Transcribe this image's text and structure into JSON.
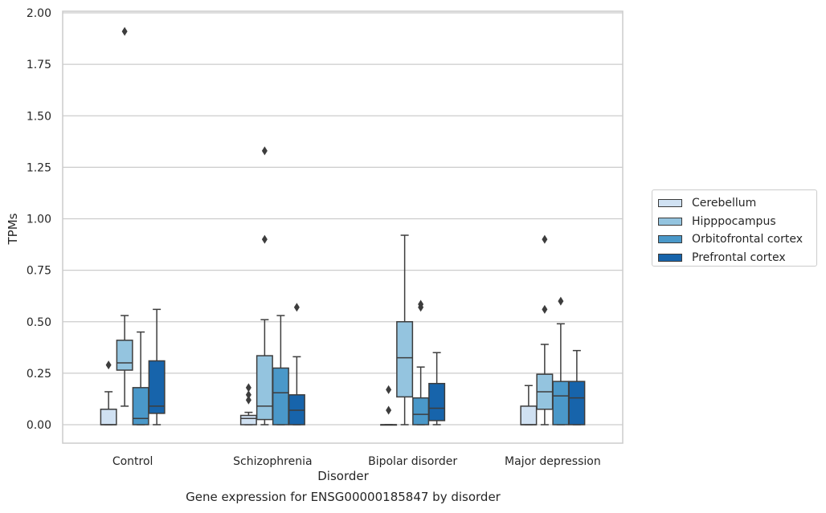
{
  "chart_data": {
    "type": "box",
    "xlabel": "Disorder",
    "ylabel": "TPMs",
    "caption": "Gene expression for ENSG00000185847 by disorder",
    "categories": [
      "Control",
      "Schizophrenia",
      "Bipolar disorder",
      "Major depression"
    ],
    "ylim": [
      -0.09,
      2.01
    ],
    "yticks": [
      0.0,
      0.25,
      0.5,
      0.75,
      1.0,
      1.25,
      1.5,
      1.75,
      2.0
    ],
    "ytick_labels": [
      "0.00",
      "0.25",
      "0.50",
      "0.75",
      "1.00",
      "1.25",
      "1.50",
      "1.75",
      "2.00"
    ],
    "grid": true,
    "legend_position": "right",
    "series": [
      {
        "name": "Cerebellum",
        "color": "#d0e1f2",
        "boxes": [
          {
            "whislo": 0.0,
            "q1": 0.0,
            "med": 0.0,
            "q3": 0.075,
            "whishi": 0.16,
            "fliers": [
              0.29
            ]
          },
          {
            "whislo": 0.0,
            "q1": 0.0,
            "med": 0.03,
            "q3": 0.045,
            "whishi": 0.06,
            "fliers": [
              0.12,
              0.145,
              0.18
            ]
          },
          {
            "whislo": 0.0,
            "q1": 0.0,
            "med": 0.0,
            "q3": 0.0,
            "whishi": 0.0,
            "fliers": [
              0.07,
              0.17
            ]
          },
          {
            "whislo": 0.0,
            "q1": 0.0,
            "med": 0.0,
            "q3": 0.09,
            "whishi": 0.19,
            "fliers": []
          }
        ]
      },
      {
        "name": "Hipppocampus",
        "color": "#94c4df",
        "boxes": [
          {
            "whislo": 0.09,
            "q1": 0.265,
            "med": 0.3,
            "q3": 0.41,
            "whishi": 0.53,
            "fliers": [
              1.91
            ]
          },
          {
            "whislo": 0.0,
            "q1": 0.025,
            "med": 0.09,
            "q3": 0.335,
            "whishi": 0.51,
            "fliers": [
              0.9,
              1.33
            ]
          },
          {
            "whislo": 0.0,
            "q1": 0.135,
            "med": 0.325,
            "q3": 0.5,
            "whishi": 0.92,
            "fliers": []
          },
          {
            "whislo": 0.0,
            "q1": 0.075,
            "med": 0.16,
            "q3": 0.245,
            "whishi": 0.39,
            "fliers": [
              0.56,
              0.9
            ]
          }
        ]
      },
      {
        "name": "Orbitofrontal cortex",
        "color": "#4a98c9",
        "boxes": [
          {
            "whislo": 0.0,
            "q1": 0.0,
            "med": 0.03,
            "q3": 0.18,
            "whishi": 0.45,
            "fliers": []
          },
          {
            "whislo": 0.0,
            "q1": 0.0,
            "med": 0.155,
            "q3": 0.275,
            "whishi": 0.53,
            "fliers": []
          },
          {
            "whislo": 0.0,
            "q1": 0.0,
            "med": 0.05,
            "q3": 0.13,
            "whishi": 0.28,
            "fliers": [
              0.57,
              0.585
            ]
          },
          {
            "whislo": 0.0,
            "q1": 0.0,
            "med": 0.14,
            "q3": 0.21,
            "whishi": 0.49,
            "fliers": [
              0.6
            ]
          }
        ]
      },
      {
        "name": "Prefrontal cortex",
        "color": "#1764ab",
        "boxes": [
          {
            "whislo": 0.0,
            "q1": 0.055,
            "med": 0.09,
            "q3": 0.31,
            "whishi": 0.56,
            "fliers": []
          },
          {
            "whislo": 0.0,
            "q1": 0.0,
            "med": 0.07,
            "q3": 0.145,
            "whishi": 0.33,
            "fliers": [
              0.57
            ]
          },
          {
            "whislo": 0.0,
            "q1": 0.02,
            "med": 0.08,
            "q3": 0.2,
            "whishi": 0.35,
            "fliers": []
          },
          {
            "whislo": 0.0,
            "q1": 0.0,
            "med": 0.13,
            "q3": 0.21,
            "whishi": 0.36,
            "fliers": []
          }
        ]
      }
    ]
  }
}
